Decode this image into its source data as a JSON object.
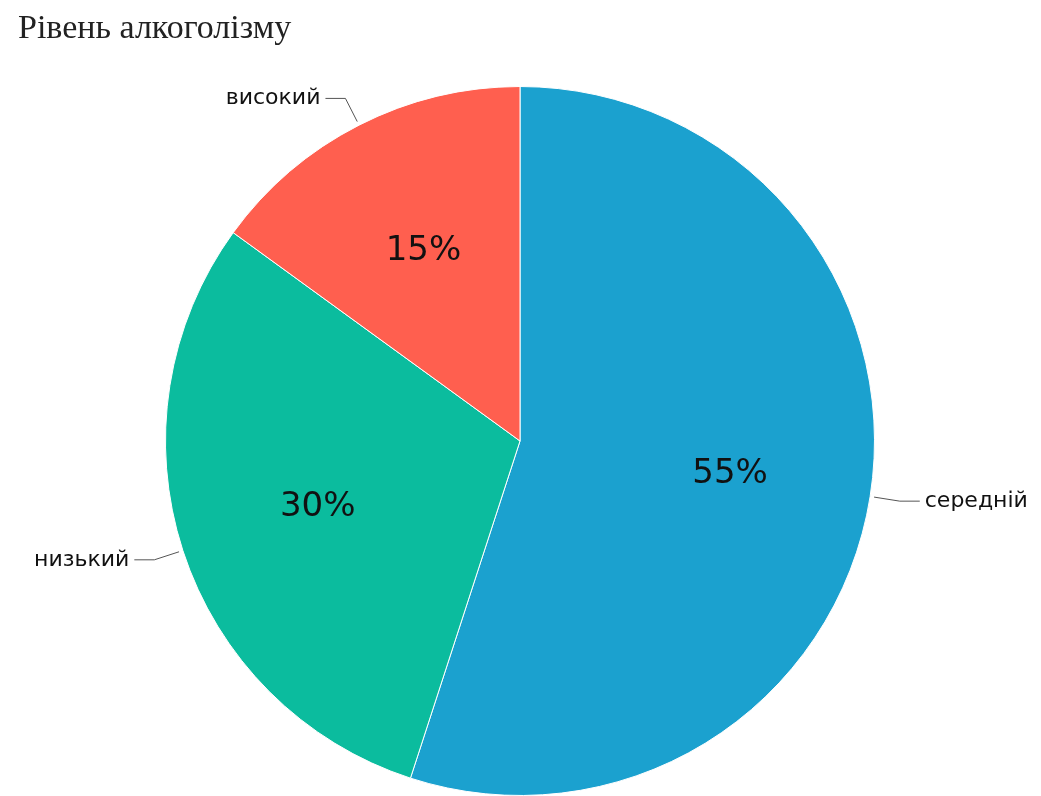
{
  "chart_data": {
    "type": "pie",
    "title": "Рівень алкоголізму",
    "categories": [
      "середній",
      "низький",
      "високий"
    ],
    "values": [
      55,
      30,
      15
    ],
    "colors": [
      "#1ba1cf",
      "#0bbc9e",
      "#ff5f4f"
    ],
    "value_labels": [
      "55%",
      "30%",
      "15%"
    ],
    "legend": false
  }
}
